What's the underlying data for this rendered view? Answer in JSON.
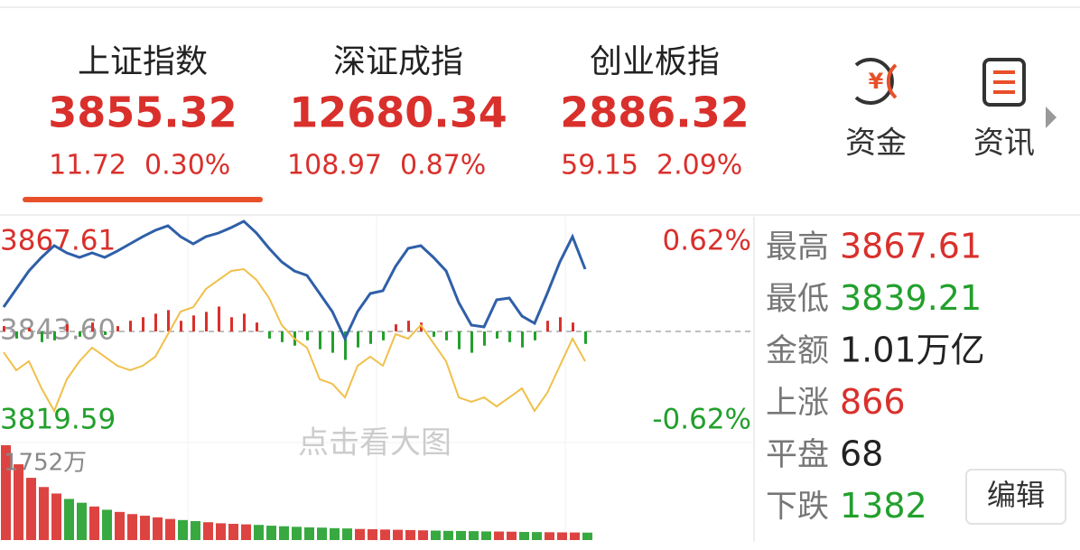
{
  "indices": [
    {
      "name": "上证指数",
      "price": "3855.32",
      "change": "11.72",
      "pct": "0.30%"
    },
    {
      "name": "深证成指",
      "price": "12680.34",
      "change": "108.97",
      "pct": "0.87%"
    },
    {
      "name": "创业板指",
      "price": "2886.32",
      "change": "59.15",
      "pct": "2.09%"
    }
  ],
  "tools": [
    "资金",
    "资讯"
  ],
  "chart_data": {
    "type": "line",
    "watermark": "点击看大图",
    "ylim": [
      3819.59,
      3867.61
    ],
    "yticks": [
      3867.61,
      {
        "value": 3843.6,
        "label": "3843.60"
      },
      3819.59
    ],
    "y2lim": [
      -0.62,
      0.62
    ],
    "y2ticks": [
      {
        "value": 0.62,
        "label": "0.62%"
      },
      {
        "value": -0.62,
        "label": "-0.62%"
      }
    ],
    "vlim": [
      0,
      1752
    ],
    "vticks": [
      {
        "value": 1752,
        "label": "1752万"
      }
    ],
    "series": [
      {
        "color": "#2f5fa8",
        "values": [
          3848.91,
          3852.85,
          3856.79,
          3859.74,
          3862.3,
          3860.72,
          3859.74,
          3860.72,
          3859.74,
          3861.12,
          3862.69,
          3864.26,
          3865.64,
          3866.63,
          3864.26,
          3862.69,
          3864.26,
          3865.05,
          3866.23,
          3867.61,
          3865.05,
          3861.71,
          3858.75,
          3856.79,
          3855.8,
          3851.87,
          3847.93,
          3842.03,
          3847.93,
          3851.87,
          3852.46,
          3857.77,
          3861.71,
          3862.3,
          3859.74,
          3856.79,
          3849.9,
          3844.98,
          3844.58,
          3850.49,
          3850.88,
          3846.95,
          3845.37,
          3851.87,
          3858.75,
          3864.26,
          3857.18
        ]
      },
      {
        "color": "#f0c04a",
        "values": [
          3839.07,
          3835.14,
          3837.11,
          3831.2,
          3826.28,
          3833.17,
          3837.11,
          3840.06,
          3838.09,
          3836.12,
          3835.14,
          3836.12,
          3838.09,
          3843.01,
          3847.93,
          3848.91,
          3852.85,
          3854.82,
          3856.79,
          3857.18,
          3854.82,
          3850.88,
          3844.98,
          3842.03,
          3840.06,
          3833.17,
          3832.19,
          3829.23,
          3836.12,
          3838.09,
          3836.12,
          3843.01,
          3842.03,
          3844.98,
          3841.04,
          3837.11,
          3829.23,
          3828.25,
          3829.23,
          3827.27,
          3829.23,
          3831.2,
          3826.28,
          3830.22,
          3836.12,
          3842.03,
          3837.11
        ]
      }
    ],
    "breadth": [
      0.03,
      -0.04,
      0.02,
      -0.06,
      -0.05,
      0.04,
      -0.03,
      0.05,
      -0.02,
      0.03,
      0.06,
      0.08,
      0.1,
      0.12,
      0.06,
      0.09,
      0.11,
      0.14,
      0.08,
      0.1,
      0.05,
      -0.04,
      -0.06,
      -0.08,
      -0.05,
      -0.1,
      -0.12,
      -0.16,
      -0.09,
      -0.07,
      -0.05,
      0.04,
      0.06,
      0.05,
      -0.03,
      -0.05,
      -0.1,
      -0.12,
      -0.08,
      -0.04,
      -0.06,
      -0.09,
      -0.05,
      0.06,
      0.08,
      0.05,
      -0.07
    ],
    "volume": [
      1752,
      1400,
      1150,
      980,
      860,
      760,
      690,
      620,
      560,
      520,
      480,
      450,
      420,
      390,
      370,
      350,
      330,
      310,
      300,
      290,
      280,
      265,
      255,
      245,
      235,
      230,
      220,
      215,
      205,
      200,
      195,
      190,
      185,
      180,
      175,
      170,
      168,
      165,
      160,
      158,
      155,
      150,
      148,
      145,
      142,
      140,
      138
    ]
  },
  "stats": [
    {
      "label": "最高",
      "value": "3867.61",
      "color": "#d9302c"
    },
    {
      "label": "最低",
      "value": "3839.21",
      "color": "#22a02c"
    },
    {
      "label": "金额",
      "value": "1.01万亿",
      "color": "#222222"
    },
    {
      "label": "上涨",
      "value": "866",
      "color": "#d9302c"
    },
    {
      "label": "平盘",
      "value": "68",
      "color": "#222222"
    },
    {
      "label": "下跌",
      "value": "1382",
      "color": "#22a02c"
    }
  ],
  "edit_button": "编辑"
}
